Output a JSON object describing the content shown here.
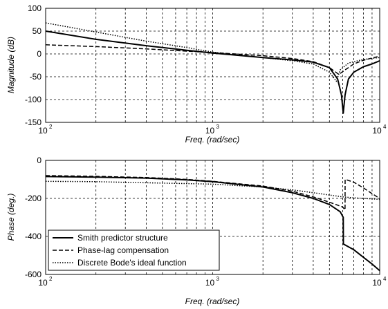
{
  "chart_data": [
    {
      "type": "line",
      "title": "",
      "xlabel": "Freq. (rad/sec)",
      "ylabel": "Magnitude (dB)",
      "xscale": "log",
      "xlim": [
        100,
        10000
      ],
      "ylim": [
        -150,
        100
      ],
      "x_ticks": [
        {
          "base": "10",
          "exp": "2"
        },
        {
          "base": "10",
          "exp": "3"
        },
        {
          "base": "10",
          "exp": "4"
        }
      ],
      "y_ticks": [
        "100",
        "50",
        "0",
        "-50",
        "-100",
        "-150"
      ],
      "y_tick_values": [
        100,
        50,
        0,
        -50,
        -100,
        -150
      ],
      "grid": true,
      "series": [
        {
          "style": "solid",
          "color": "#000000",
          "points": [
            [
              100,
              50
            ],
            [
              200,
              32
            ],
            [
              400,
              18
            ],
            [
              700,
              8
            ],
            [
              1000,
              2
            ],
            [
              2000,
              -8
            ],
            [
              3000,
              -13
            ],
            [
              4000,
              -18
            ],
            [
              5000,
              -30
            ],
            [
              5600,
              -55
            ],
            [
              5900,
              -90
            ],
            [
              6050,
              -130
            ],
            [
              6200,
              -90
            ],
            [
              6500,
              -55
            ],
            [
              7000,
              -40
            ],
            [
              8000,
              -28
            ],
            [
              9000,
              -22
            ],
            [
              10000,
              -15
            ]
          ]
        },
        {
          "style": "dashed",
          "color": "#000000",
          "points": [
            [
              100,
              20
            ],
            [
              200,
              16
            ],
            [
              400,
              11
            ],
            [
              700,
              6
            ],
            [
              1000,
              3
            ],
            [
              2000,
              -4
            ],
            [
              3000,
              -10
            ],
            [
              4000,
              -17
            ],
            [
              5000,
              -30
            ],
            [
              5700,
              -45
            ],
            [
              6200,
              -35
            ],
            [
              7000,
              -22
            ],
            [
              8000,
              -14
            ],
            [
              9000,
              -9
            ],
            [
              10000,
              -5
            ]
          ]
        },
        {
          "style": "dotted",
          "color": "#000000",
          "points": [
            [
              100,
              68
            ],
            [
              200,
              48
            ],
            [
              400,
              28
            ],
            [
              700,
              14
            ],
            [
              1000,
              4
            ],
            [
              2000,
              -8
            ],
            [
              3000,
              -15
            ],
            [
              4000,
              -22
            ],
            [
              5000,
              -40
            ],
            [
              5500,
              -60
            ],
            [
              5800,
              -35
            ],
            [
              6500,
              -20
            ],
            [
              8000,
              -12
            ],
            [
              10000,
              -8
            ]
          ]
        }
      ]
    },
    {
      "type": "line",
      "title": "",
      "xlabel": "Freq. (rad/sec)",
      "ylabel": "Phase (deg.)",
      "xscale": "log",
      "xlim": [
        100,
        10000
      ],
      "ylim": [
        -600,
        0
      ],
      "x_ticks": [
        {
          "base": "10",
          "exp": "2"
        },
        {
          "base": "10",
          "exp": "3"
        },
        {
          "base": "10",
          "exp": "4"
        }
      ],
      "y_ticks": [
        "0",
        "-200",
        "-400",
        "-600"
      ],
      "y_tick_values": [
        0,
        -200,
        -400,
        -600
      ],
      "grid": true,
      "legend": {
        "placement": "bottom-left",
        "entries": [
          {
            "label": "Smith predictor structure",
            "style": "solid"
          },
          {
            "label": "Phase-lag compensation",
            "style": "dashed"
          },
          {
            "label": "Discrete Bode's ideal function",
            "style": "dotted"
          }
        ]
      },
      "series": [
        {
          "style": "solid",
          "color": "#000000",
          "points": [
            [
              100,
              -85
            ],
            [
              200,
              -88
            ],
            [
              400,
              -93
            ],
            [
              700,
              -103
            ],
            [
              1000,
              -112
            ],
            [
              2000,
              -140
            ],
            [
              3000,
              -170
            ],
            [
              4000,
              -200
            ],
            [
              5000,
              -232
            ],
            [
              5800,
              -270
            ],
            [
              6050,
              -300
            ],
            [
              6060,
              -440
            ],
            [
              7000,
              -470
            ],
            [
              8000,
              -510
            ],
            [
              9000,
              -545
            ],
            [
              10000,
              -580
            ]
          ]
        },
        {
          "style": "dashed",
          "color": "#000000",
          "points": [
            [
              100,
              -80
            ],
            [
              200,
              -84
            ],
            [
              400,
              -90
            ],
            [
              700,
              -100
            ],
            [
              1000,
              -110
            ],
            [
              2000,
              -135
            ],
            [
              3000,
              -162
            ],
            [
              4000,
              -192
            ],
            [
              5000,
              -220
            ],
            [
              6000,
              -245
            ],
            [
              6200,
              -260
            ],
            [
              6210,
              -100
            ],
            [
              7000,
              -115
            ],
            [
              8000,
              -145
            ],
            [
              9000,
              -175
            ],
            [
              10000,
              -200
            ]
          ]
        },
        {
          "style": "dotted",
          "color": "#000000",
          "points": [
            [
              100,
              -110
            ],
            [
              200,
              -112
            ],
            [
              400,
              -118
            ],
            [
              700,
              -122
            ],
            [
              1000,
              -125
            ],
            [
              2000,
              -140
            ],
            [
              3000,
              -155
            ],
            [
              4000,
              -170
            ],
            [
              5000,
              -182
            ],
            [
              6000,
              -192
            ],
            [
              7000,
              -197
            ],
            [
              8000,
              -200
            ],
            [
              10000,
              -205
            ]
          ]
        }
      ]
    }
  ]
}
